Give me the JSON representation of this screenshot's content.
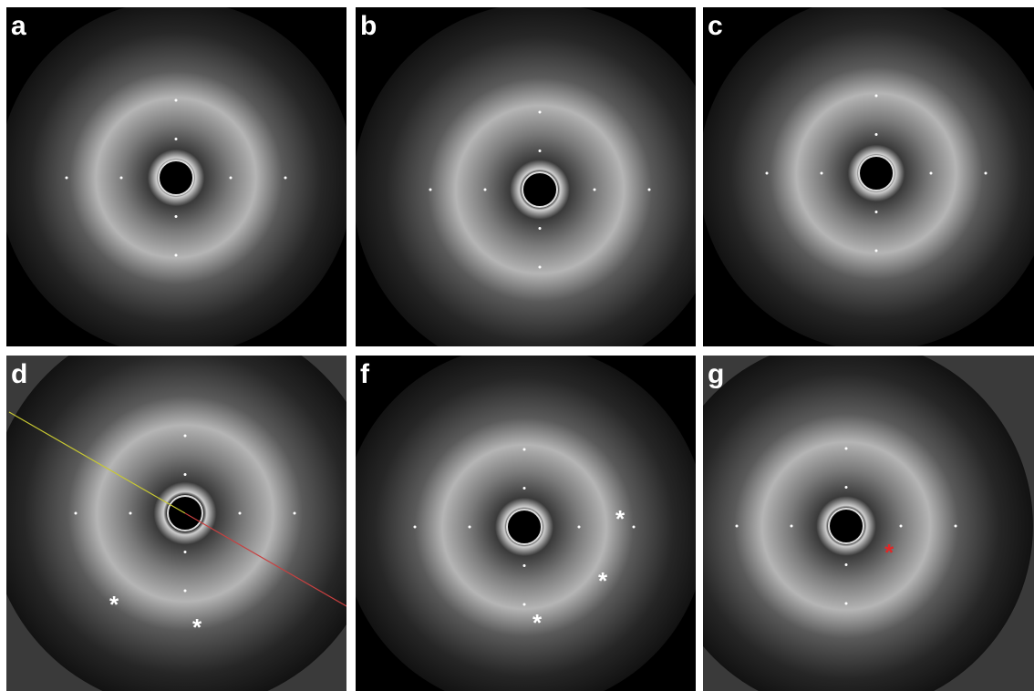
{
  "panels": [
    {
      "label": "a"
    },
    {
      "label": "b"
    },
    {
      "label": "c"
    },
    {
      "label": "d",
      "annotations": [
        "*",
        "*"
      ]
    },
    {
      "label": "f",
      "annotations": [
        "*",
        "*",
        "*"
      ]
    },
    {
      "label": "g",
      "annotations": [
        "*"
      ]
    }
  ]
}
